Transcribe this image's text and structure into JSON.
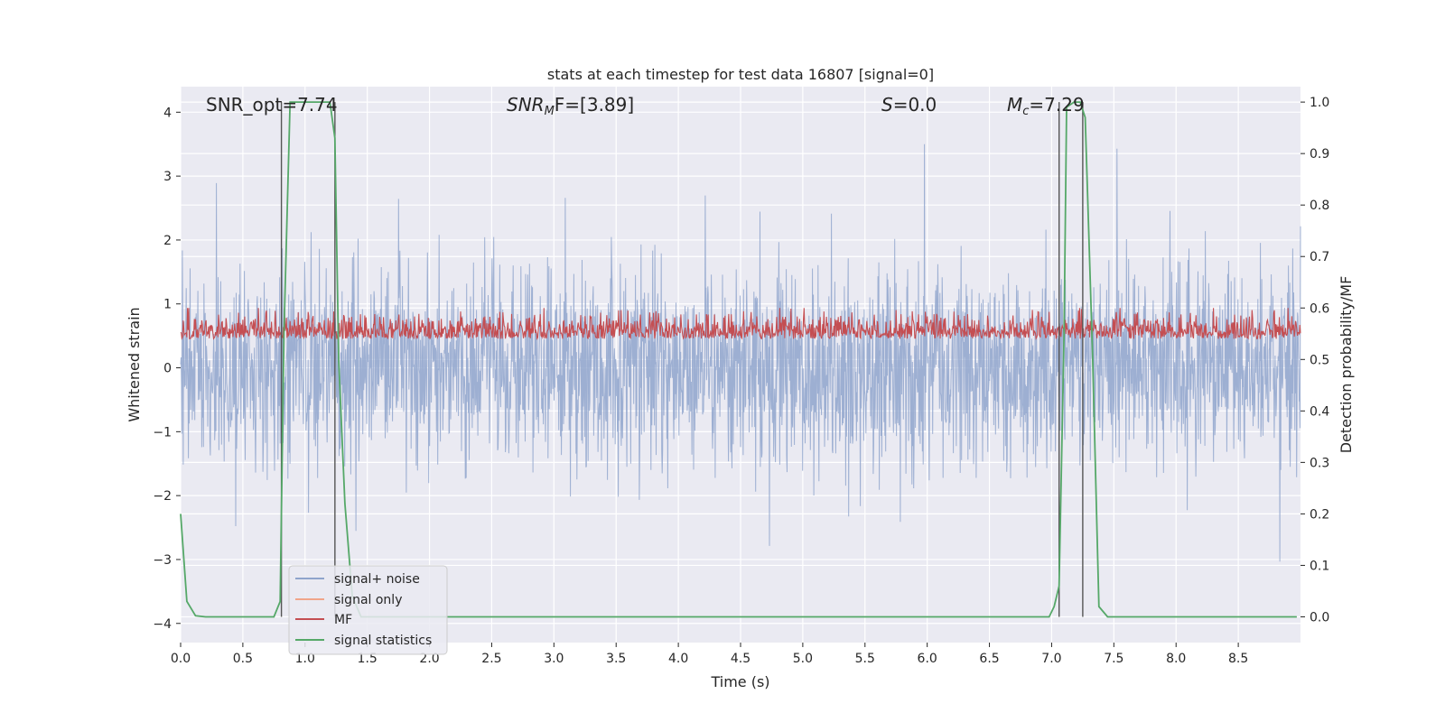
{
  "chart_data": {
    "type": "line",
    "title": "stats at each timestep for test data 16807 [signal=0]",
    "xlabel": "Time (s)",
    "ylabel": "Whitened strain",
    "ylabel_right": "Detection probability/MF",
    "xlim": [
      0,
      9
    ],
    "ylim": [
      -4.3,
      4.4
    ],
    "ylim_right": [
      -0.05,
      1.03
    ],
    "x_ticks": [
      "0.0",
      "0.5",
      "1.0",
      "1.5",
      "2.0",
      "2.5",
      "3.0",
      "3.5",
      "4.0",
      "4.5",
      "5.0",
      "5.5",
      "6.0",
      "6.5",
      "7.0",
      "7.5",
      "8.0",
      "8.5"
    ],
    "y_ticks": [
      "−4",
      "−3",
      "−2",
      "−1",
      "0",
      "1",
      "2",
      "3",
      "4"
    ],
    "y_right_ticks": [
      "0.0",
      "0.1",
      "0.2",
      "0.3",
      "0.4",
      "0.5",
      "0.6",
      "0.7",
      "0.8",
      "0.9",
      "1.0"
    ],
    "grid": true,
    "legend_position": "lower-left",
    "annotations": {
      "snr_opt": "SNR_opt=7.74",
      "snr_mf_italic": "SNR",
      "snr_mf_sub": "M",
      "snr_mf_rest": "F=[3.89]",
      "s_italic": "S",
      "s_rest": "=0.0",
      "mc_italic": "M",
      "mc_sub": "c",
      "mc_rest": "=7.29"
    },
    "series": [
      {
        "name": "signal+ noise",
        "axis": "left",
        "color": "#8fa4cc",
        "description_values": "noise band roughly -1.5 to 1.5 with spikes up to about ±4"
      },
      {
        "name": "signal only",
        "axis": "left",
        "color": "#f0a58a",
        "values": []
      },
      {
        "name": "MF",
        "axis": "right",
        "color": "#c44e52",
        "value_range": [
          0.5,
          0.6
        ]
      },
      {
        "name": "signal statistics",
        "axis": "right",
        "color": "#55a868",
        "x": [
          0.0,
          0.05,
          0.12,
          0.2,
          0.4,
          0.6,
          0.75,
          0.8,
          0.83,
          0.88,
          0.95,
          1.2,
          1.24,
          1.27,
          1.32,
          1.38,
          1.45,
          1.5,
          3.0,
          5.0,
          6.98,
          7.02,
          7.06,
          7.1,
          7.12,
          7.18,
          7.23,
          7.27,
          7.33,
          7.38,
          7.45,
          7.5,
          8.0,
          8.97
        ],
        "y": [
          0.2,
          0.03,
          0.002,
          0.0,
          0.0,
          0.0,
          0.0,
          0.03,
          0.55,
          1.0,
          1.0,
          1.0,
          0.93,
          0.5,
          0.22,
          0.04,
          0.0,
          0.0,
          0.0,
          0.0,
          0.0,
          0.02,
          0.06,
          0.55,
          0.99,
          1.0,
          1.0,
          0.97,
          0.5,
          0.02,
          0.0,
          0.0,
          0.0,
          0.0
        ]
      }
    ],
    "vertical_lines_x": [
      0.81,
      1.24,
      7.06,
      7.25
    ]
  }
}
